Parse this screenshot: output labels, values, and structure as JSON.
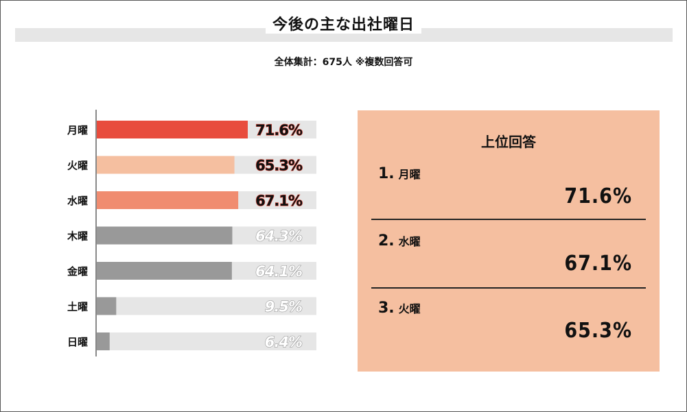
{
  "title": "今後の主な出社曜日",
  "subtitle": "全体集計：675人 ※複数回答可",
  "chart_data": {
    "type": "bar",
    "orientation": "horizontal",
    "categories": [
      "月曜",
      "火曜",
      "水曜",
      "木曜",
      "金曜",
      "土曜",
      "日曜"
    ],
    "values": [
      71.6,
      65.3,
      67.1,
      64.3,
      64.1,
      9.5,
      6.4
    ],
    "value_labels": [
      "71.6%",
      "65.3%",
      "67.1%",
      "64.3%",
      "64.1%",
      "9.5%",
      "6.4%"
    ],
    "xlim": [
      0,
      100
    ],
    "unit": "%",
    "colors": [
      "#e84c3d",
      "#f5bfa0",
      "#f08c70",
      "#999999",
      "#999999",
      "#999999",
      "#999999"
    ],
    "track_color": "#e6e6e6",
    "highlight_label_color": "#e84c3d",
    "muted_label_color": "#ffffff"
  },
  "ranking": {
    "title": "上位回答",
    "items": [
      {
        "rank": "1.",
        "label": "月曜",
        "value": "71.6%"
      },
      {
        "rank": "2.",
        "label": "水曜",
        "value": "67.1%"
      },
      {
        "rank": "3.",
        "label": "火曜",
        "value": "65.3%"
      }
    ],
    "background": "#f5bfa0"
  }
}
